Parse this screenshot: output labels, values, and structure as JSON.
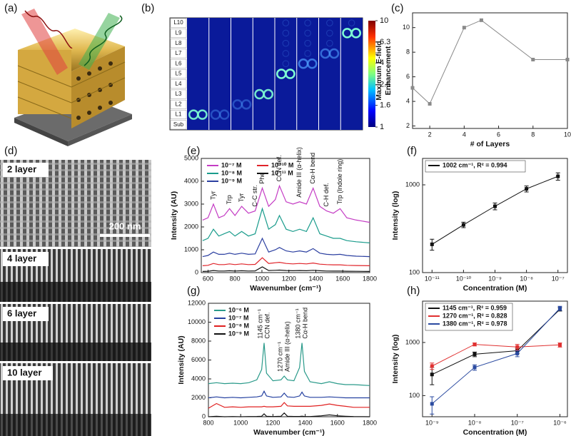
{
  "figures": {
    "a": {
      "label": "(a)"
    },
    "d": {
      "label": "(d)",
      "images": [
        "2 layer",
        "4 layer",
        "6 layer",
        "10 layer"
      ],
      "scale_bar": "200 nm"
    }
  },
  "chart_data": [
    {
      "type": "field-map",
      "label": "(b)",
      "rows": [
        "L10",
        "L9",
        "L8",
        "L7",
        "L6",
        "L5",
        "L4",
        "L3",
        "L2",
        "L1",
        "Sub"
      ],
      "clim": [
        1,
        10
      ],
      "log": true,
      "ticks": [
        10,
        6.3,
        4,
        2.5,
        1.6,
        1
      ]
    },
    {
      "type": "line",
      "label": "(c)",
      "xlabel": "# of Layers",
      "ylabel": [
        "Maximum E-field",
        "Enhancement"
      ],
      "x": [
        1,
        2,
        4,
        5,
        8,
        10
      ],
      "series": [
        {
          "color": "#8a8a8a",
          "values": [
            5.1,
            3.8,
            10,
            10.6,
            7.4,
            7.4
          ]
        }
      ],
      "marker": "square",
      "xlim": [
        1,
        10
      ],
      "ylim": [
        1.8,
        11.2
      ],
      "xticks": [
        2,
        4,
        6,
        8,
        10
      ],
      "yticks": [
        2,
        4,
        6,
        8,
        10
      ]
    },
    {
      "type": "line",
      "label": "(e)",
      "xlabel": "Wavenumber (cm⁻¹)",
      "ylabel": [
        "Intensity (AU)"
      ],
      "x": [
        560,
        600,
        640,
        680,
        720,
        760,
        800,
        850,
        900,
        950,
        1003,
        1050,
        1100,
        1130,
        1180,
        1230,
        1280,
        1330,
        1380,
        1430,
        1480,
        1530,
        1580,
        1630,
        1700,
        1800
      ],
      "series": [
        {
          "name": "10⁻⁷ M",
          "color": "#c43cc4",
          "values": [
            2300,
            2400,
            3000,
            2400,
            2500,
            2800,
            2500,
            2900,
            2600,
            2700,
            3700,
            2900,
            3200,
            3800,
            3100,
            3000,
            3100,
            3000,
            3700,
            2900,
            2700,
            2600,
            2800,
            2400,
            2300,
            2200
          ]
        },
        {
          "name": "10⁻⁸ M",
          "color": "#1a9c8c",
          "values": [
            1400,
            1500,
            1900,
            1600,
            1700,
            1800,
            1600,
            1800,
            1600,
            1700,
            2800,
            1900,
            2100,
            2500,
            1900,
            1800,
            1900,
            1800,
            2400,
            1700,
            1600,
            1500,
            1500,
            1400,
            1350,
            1300
          ]
        },
        {
          "name": "10⁻⁹ M",
          "color": "#2b3fa0",
          "values": [
            700,
            750,
            900,
            800,
            800,
            850,
            800,
            850,
            800,
            820,
            1500,
            900,
            1000,
            1100,
            950,
            900,
            950,
            900,
            1050,
            850,
            800,
            780,
            800,
            750,
            720,
            700
          ]
        },
        {
          "name": "10⁻¹⁰ M",
          "color": "#e0242a",
          "values": [
            300,
            320,
            400,
            350,
            350,
            380,
            350,
            380,
            350,
            360,
            650,
            400,
            430,
            450,
            400,
            380,
            400,
            380,
            420,
            370,
            350,
            340,
            340,
            320,
            310,
            300
          ]
        },
        {
          "name": "10⁻¹¹ M",
          "color": "#111111",
          "values": [
            50,
            60,
            90,
            70,
            70,
            80,
            70,
            80,
            70,
            75,
            250,
            90,
            100,
            110,
            90,
            80,
            90,
            80,
            100,
            80,
            70,
            65,
            65,
            60,
            55,
            50
          ]
        }
      ],
      "legend": "upper left",
      "legend_columns": 2,
      "legend_frame": false,
      "xlim": [
        550,
        1800
      ],
      "ylim": [
        0,
        5000
      ],
      "xticks": [
        600,
        800,
        1000,
        1200,
        1400,
        1600,
        1800
      ],
      "yticks": [
        0,
        1000,
        2000,
        3000,
        4000,
        5000
      ],
      "annotations": [
        {
          "text": [
            "Tyr"
          ],
          "x": 640
        },
        {
          "text": [
            "Trp"
          ],
          "x": 760
        },
        {
          "text": [
            "Tyr"
          ],
          "x": 850
        },
        {
          "text": [
            "C-C str."
          ],
          "x": 950
        },
        {
          "text": [
            "Phe"
          ],
          "x": 1003
        },
        {
          "text": [
            "CCN def."
          ],
          "x": 1130
        },
        {
          "text": [
            "Amide III (α-helix)"
          ],
          "x": 1280
        },
        {
          "text": [
            "Cα-H bend"
          ],
          "x": 1380
        },
        {
          "text": [
            "C-H def."
          ],
          "x": 1480
        },
        {
          "text": [
            "Trp (Indole ring)"
          ],
          "x": 1580
        }
      ]
    },
    {
      "type": "line",
      "label": "(f)",
      "xlabel": "Concentration (M)",
      "ylabel": [
        "Intensity (log)"
      ],
      "x": [
        1e-11,
        1e-10,
        1e-09,
        1e-08,
        1e-07
      ],
      "series": [
        {
          "name": "1002 cm⁻¹, R² = 0.994",
          "color": "#111111",
          "values": [
            210,
            350,
            570,
            900,
            1250
          ],
          "errors": [
            30,
            25,
            50,
            70,
            120
          ]
        }
      ],
      "marker": "square",
      "legend": "upper left",
      "legend_columns": 1,
      "legend_frame": true,
      "log_x": true,
      "log_y": true,
      "xlim": [
        5e-12,
        2e-07
      ],
      "ylim": [
        100,
        2000
      ],
      "xticks": [
        {
          "value": 1e-11,
          "label": "10⁻¹¹"
        },
        {
          "value": 1e-10,
          "label": "10⁻¹⁰"
        },
        {
          "value": 1e-09,
          "label": "10⁻⁹"
        },
        {
          "value": 1e-08,
          "label": "10⁻⁸"
        },
        {
          "value": 1e-07,
          "label": "10⁻⁷"
        }
      ],
      "yticks": [
        100,
        1000
      ]
    },
    {
      "type": "line",
      "label": "(g)",
      "xlabel": "Wavenumber (cm⁻¹)",
      "ylabel": [
        "Intensity (AU)"
      ],
      "x": [
        800,
        850,
        900,
        950,
        1000,
        1050,
        1100,
        1130,
        1145,
        1160,
        1200,
        1250,
        1270,
        1290,
        1330,
        1365,
        1380,
        1395,
        1430,
        1500,
        1550,
        1600,
        1650,
        1700,
        1800
      ],
      "series": [
        {
          "name": "10⁻⁶ M",
          "color": "#2a9a8a",
          "values": [
            3500,
            3600,
            3500,
            3550,
            3500,
            3600,
            3900,
            5000,
            7800,
            4600,
            3800,
            3900,
            4300,
            3900,
            3800,
            5200,
            7800,
            4800,
            3700,
            3500,
            3700,
            3500,
            3400,
            3400,
            3300
          ]
        },
        {
          "name": "10⁻⁷ M",
          "color": "#2440a0",
          "values": [
            2000,
            2100,
            2000,
            2050,
            2000,
            2050,
            2100,
            2200,
            2700,
            2200,
            2050,
            2100,
            2500,
            2100,
            2050,
            2200,
            2600,
            2200,
            2050,
            2050,
            2100,
            2050,
            2000,
            2000,
            2000
          ]
        },
        {
          "name": "10⁻⁸ M",
          "color": "#e02020",
          "values": [
            900,
            1400,
            1000,
            1050,
            1000,
            1050,
            1050,
            1050,
            1100,
            1050,
            1050,
            1100,
            1500,
            1150,
            1100,
            1100,
            1100,
            1100,
            1100,
            1200,
            1350,
            1200,
            1100,
            1000,
            1000
          ]
        },
        {
          "name": "10⁻⁹ M",
          "color": "#111111",
          "values": [
            0,
            50,
            0,
            20,
            0,
            20,
            30,
            50,
            300,
            50,
            20,
            50,
            400,
            50,
            30,
            30,
            60,
            30,
            20,
            100,
            200,
            100,
            50,
            20,
            0
          ]
        }
      ],
      "legend": "upper left",
      "legend_columns": 1,
      "legend_frame": false,
      "xlim": [
        800,
        1800
      ],
      "ylim": [
        0,
        12000
      ],
      "xticks": [
        800,
        1000,
        1200,
        1400,
        1600,
        1800
      ],
      "yticks": [
        0,
        2000,
        4000,
        6000,
        8000,
        10000,
        12000
      ],
      "annotations": [
        {
          "text": [
            "1145 cm⁻¹",
            "CCN def."
          ],
          "x": 1145
        },
        {
          "text": [
            "1270 cm⁻¹",
            "Amide III (α-helix)"
          ],
          "x": 1270
        },
        {
          "text": [
            "1380 cm⁻¹",
            "Cα-H bend"
          ],
          "x": 1380
        }
      ]
    },
    {
      "type": "line",
      "label": "(h)",
      "xlabel": "Concentration (M)",
      "ylabel": [
        "Intensity (log)"
      ],
      "x": [
        1e-09,
        1e-08,
        1e-07,
        1e-06
      ],
      "series": [
        {
          "name": "1145 cm⁻¹, R² = 0.959",
          "color": "#111111",
          "values": [
            250,
            600,
            700,
            4200
          ],
          "errors": [
            90,
            60,
            80,
            300
          ]
        },
        {
          "name": "1270 cm⁻¹, R² = 0.828",
          "color": "#e03030",
          "values": [
            360,
            920,
            820,
            900
          ],
          "errors": [
            50,
            60,
            100,
            80
          ]
        },
        {
          "name": "1380 cm⁻¹, R² = 0.978",
          "color": "#2a4aa0",
          "values": [
            70,
            340,
            620,
            4400
          ],
          "errors": [
            25,
            40,
            80,
            400
          ]
        }
      ],
      "marker": "square",
      "legend": "upper left",
      "legend_columns": 1,
      "legend_frame": true,
      "log_x": true,
      "log_y": true,
      "xlim": [
        6e-10,
        1.5e-06
      ],
      "ylim": [
        40,
        6000
      ],
      "xticks": [
        {
          "value": 1e-09,
          "label": "10⁻⁹"
        },
        {
          "value": 1e-08,
          "label": "10⁻⁸"
        },
        {
          "value": 1e-07,
          "label": "10⁻⁷"
        },
        {
          "value": 1e-06,
          "label": "10⁻⁶"
        }
      ],
      "yticks": [
        100,
        1000
      ]
    }
  ]
}
